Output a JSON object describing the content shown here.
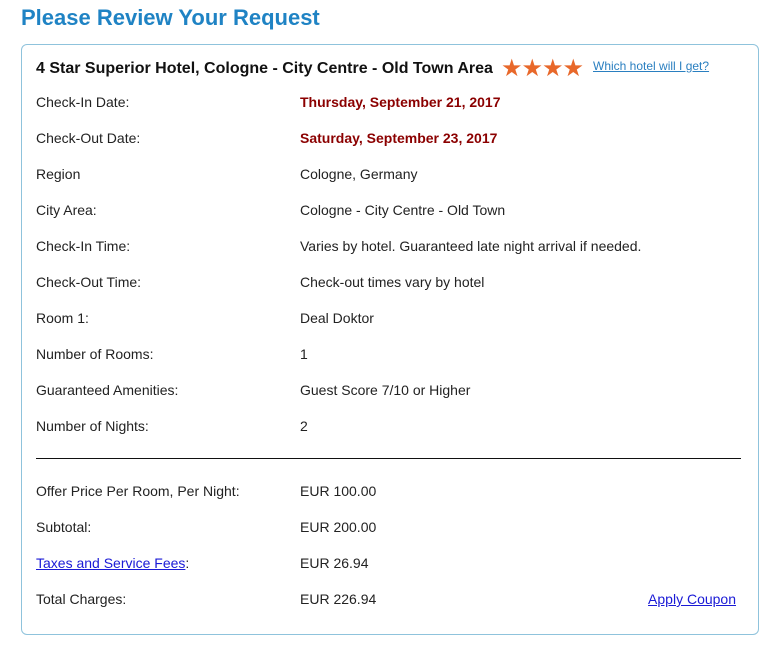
{
  "page_title": "Please Review Your Request",
  "hotel": {
    "name": "4 Star Superior Hotel, Cologne - City Centre - Old Town Area",
    "stars": 4,
    "star_glyphs": "★★★★",
    "star_color": "#e8682a",
    "which_link": "Which hotel will I get?"
  },
  "details": [
    {
      "label": "Check-In Date:",
      "value": "Thursday, September 21, 2017"
    },
    {
      "label": "Check-Out Date:",
      "value": "Saturday, September 23, 2017"
    },
    {
      "label": "Region",
      "value": "Cologne, Germany"
    },
    {
      "label": "City Area:",
      "value": "Cologne - City Centre - Old Town"
    },
    {
      "label": "Check-In Time:",
      "value": "Varies by hotel. Guaranteed late night arrival if needed."
    },
    {
      "label": "Check-Out Time:",
      "value": "Check-out times vary by hotel"
    },
    {
      "label": "Room 1:",
      "value": "Deal Doktor"
    },
    {
      "label": "Number of Rooms:",
      "value": "1"
    },
    {
      "label": "Guaranteed Amenities:",
      "value": "Guest Score 7/10 or Higher"
    },
    {
      "label": "Number of Nights:",
      "value": "2"
    }
  ],
  "pricing": [
    {
      "label": "Offer Price Per Room, Per Night:",
      "value": "EUR 100.00"
    },
    {
      "label": "Subtotal:",
      "value": "EUR 200.00"
    },
    {
      "label": "Taxes and Service Fees",
      "label_suffix": ":",
      "value": "EUR 26.94"
    },
    {
      "label": "Total Charges:",
      "value": "EUR 226.94"
    }
  ],
  "apply_coupon": "Apply Coupon"
}
